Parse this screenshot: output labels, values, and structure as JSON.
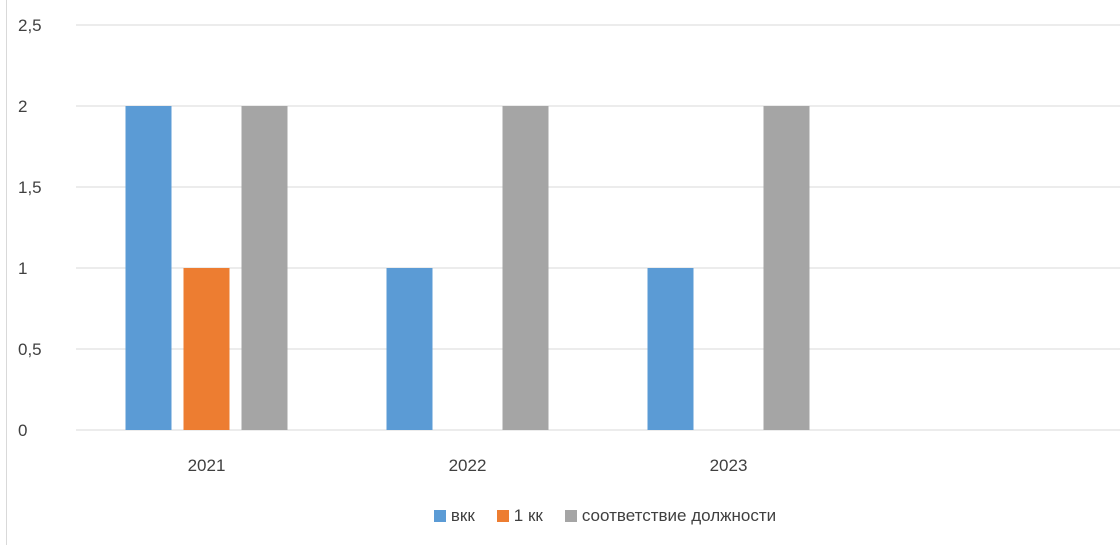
{
  "chart_data": {
    "type": "bar",
    "title": "",
    "xlabel": "",
    "ylabel": "",
    "categories": [
      "2021",
      "2022",
      "2023",
      ""
    ],
    "series": [
      {
        "name": "вкк",
        "values": [
          2,
          1,
          1,
          null
        ],
        "color": "#5b9bd5"
      },
      {
        "name": "1 кк",
        "values": [
          1,
          0,
          0,
          null
        ],
        "color": "#ed7d31"
      },
      {
        "name": "соответствие должности",
        "values": [
          2,
          2,
          2,
          null
        ],
        "color": "#a5a5a5"
      }
    ],
    "ylim": [
      0,
      2.5
    ],
    "yticks": [
      {
        "value": 0,
        "label": "0"
      },
      {
        "value": 0.5,
        "label": "0,5"
      },
      {
        "value": 1,
        "label": "1"
      },
      {
        "value": 1.5,
        "label": "1,5"
      },
      {
        "value": 2,
        "label": "2"
      },
      {
        "value": 2.5,
        "label": "2,5"
      }
    ],
    "grid": true,
    "legend_position": "bottom"
  },
  "colors": {
    "gridline": "#d9d9d9",
    "axis": "#d9d9d9"
  }
}
